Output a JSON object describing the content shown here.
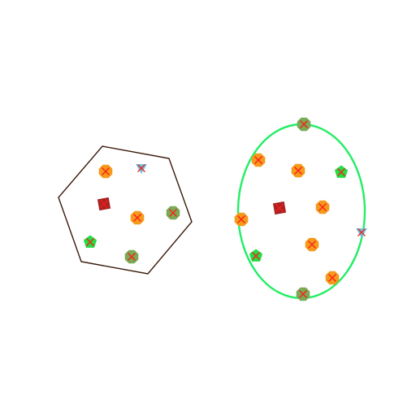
{
  "colors": {
    "background": "#ffffff",
    "hexagon_stroke": "#3a1a0a",
    "ellipse_stroke": "#22ee66",
    "x_mark": "#ff1a1a"
  },
  "marker_styles": {
    "orange-octagon": "#f59a1c",
    "olive-octagon": "#7aaa55",
    "green-pentagon": "#22dd44",
    "cyan-triangle": "#66c8dd",
    "maroon-square": "#aa2222"
  },
  "shapes": [
    {
      "name": "hexagon-region",
      "kind": "hexagon"
    },
    {
      "name": "ellipse-region",
      "kind": "ellipse"
    }
  ],
  "markers": [
    {
      "shape": "hexagon",
      "style": "orange-octagon"
    },
    {
      "shape": "hexagon",
      "style": "cyan-triangle"
    },
    {
      "shape": "hexagon",
      "style": "maroon-square"
    },
    {
      "shape": "hexagon",
      "style": "orange-octagon"
    },
    {
      "shape": "hexagon",
      "style": "olive-octagon"
    },
    {
      "shape": "hexagon",
      "style": "green-pentagon"
    },
    {
      "shape": "hexagon",
      "style": "olive-octagon"
    },
    {
      "shape": "ellipse",
      "style": "olive-octagon"
    },
    {
      "shape": "ellipse",
      "style": "orange-octagon"
    },
    {
      "shape": "ellipse",
      "style": "orange-octagon"
    },
    {
      "shape": "ellipse",
      "style": "green-pentagon"
    },
    {
      "shape": "ellipse",
      "style": "maroon-square"
    },
    {
      "shape": "ellipse",
      "style": "orange-octagon"
    },
    {
      "shape": "ellipse",
      "style": "orange-octagon"
    },
    {
      "shape": "ellipse",
      "style": "cyan-triangle"
    },
    {
      "shape": "ellipse",
      "style": "orange-octagon"
    },
    {
      "shape": "ellipse",
      "style": "green-pentagon"
    },
    {
      "shape": "ellipse",
      "style": "orange-octagon"
    },
    {
      "shape": "ellipse",
      "style": "olive-octagon"
    }
  ]
}
